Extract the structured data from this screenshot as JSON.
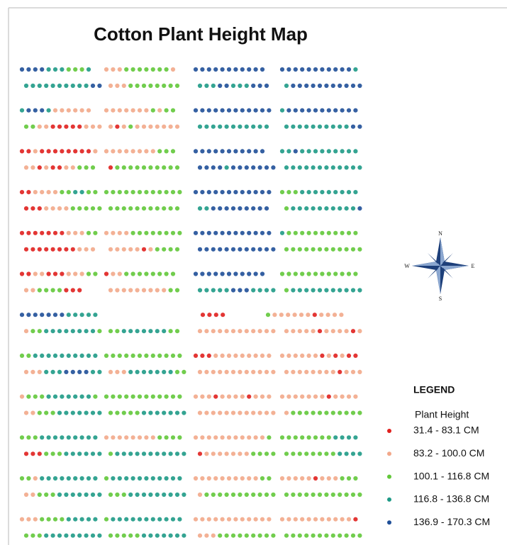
{
  "title": "Cotton Plant Height Map",
  "legend": {
    "title": "LEGEND",
    "subtitle": "Plant Height",
    "items": [
      {
        "label": "31.4 - 83.1 CM",
        "color": "#e0201e"
      },
      {
        "label": "83.2 - 100.0 CM",
        "color": "#f2a88a"
      },
      {
        "label": "100.1 - 116.8 CM",
        "color": "#62c83a"
      },
      {
        "label": "116.8 - 136.8 CM",
        "color": "#1e9a86"
      },
      {
        "label": "136.9 - 170.3 CM",
        "color": "#1f4f98"
      }
    ]
  },
  "compass": {
    "n": "N",
    "e": "E",
    "s": "S",
    "w": "W"
  },
  "plots": [
    [
      "44443332223",
      "11122222221",
      "44444444444",
      "444444444443"
    ],
    [
      "333333333344",
      "11122222222",
      "33344333444",
      "344444444444"
    ],
    [
      "34443111111",
      "11111112122",
      "444444444444",
      "344444444444"
    ],
    [
      "221100000111",
      "10121111111",
      "33333333333",
      "333333333344"
    ],
    [
      "001000000001",
      "11111111222",
      "44444444444",
      "334333333333"
    ],
    [
      "11010011222",
      "02222222222",
      "444434444444",
      "333333333333"
    ],
    [
      "001111223322",
      "222222222222",
      "444444444444",
      "222333333333"
    ],
    [
      "000111122222",
      "22222222222",
      "33444444444",
      "233333333334"
    ],
    [
      "000000011122",
      "111122222222",
      "444444444444",
      "322222222222"
    ],
    [
      "00000000111",
      "11111012222",
      "444444444444",
      "222222222222"
    ],
    [
      "001100011122",
      "01122222222",
      "44444444444",
      "222222222222"
    ],
    [
      "112222000",
      "11111111122",
      "333334443333",
      "233333333333"
    ],
    [
      "444444433333",
      "",
      "0000",
      "211111101111"
    ],
    [
      "122333333332",
      "22333333322",
      "111111111111",
      "111110111101"
    ],
    [
      "223333333333",
      "222222222222",
      "000111111111",
      "111111010100"
    ],
    [
      "111333444433",
      "111333333322",
      "111111111111",
      "111111110111"
    ],
    [
      "122233333332",
      "222222222222",
      "111011110111",
      "111111101111"
    ],
    [
      "112223333333",
      "222223333333",
      "111111111111",
      "122222222222"
    ],
    [
      "222333333333",
      "111111112222",
      "111111111112",
      "222222223333"
    ],
    [
      "000222333333",
      "233333333333",
      "011111112222",
      "222222223333"
    ],
    [
      "221333333333",
      "233333333333",
      "111111111122",
      "111110111222"
    ],
    [
      "112223333333",
      "222333333333",
      "122222222222",
      "222222222222"
    ],
    [
      "111222233333",
      "233333333333",
      "111111111111",
      "111111111110"
    ],
    [
      "222333333333",
      "222223333333",
      "111222222222",
      "222222222222"
    ]
  ]
}
